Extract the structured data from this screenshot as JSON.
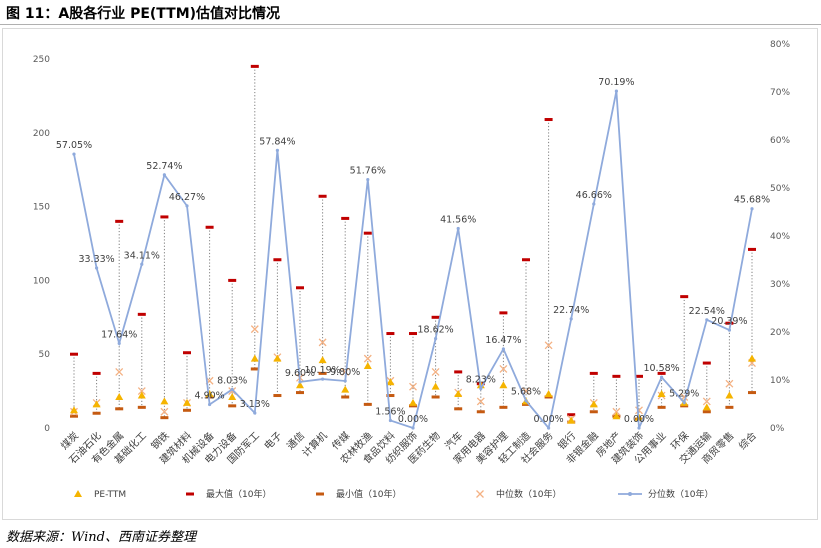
{
  "figure": {
    "title": "图 11：A股各行业 PE(TTM)估值对比情况",
    "source": "数据来源：Wind、西南证券整理"
  },
  "colors": {
    "pe_ttm": "#f5b400",
    "max": "#c00000",
    "min": "#c55a11",
    "median": "#f4b183",
    "percentile": "#8faadc",
    "whisker": "#7f7f7f",
    "axis_text": "#595959"
  },
  "chart_data": {
    "type": "line",
    "title": "",
    "categories": [
      "煤炭",
      "石油石化",
      "有色金属",
      "基础化工",
      "钢铁",
      "建筑材料",
      "机械设备",
      "电力设备",
      "国防军工",
      "电子",
      "通信",
      "计算机",
      "传媒",
      "农林牧渔",
      "食品饮料",
      "纺织服饰",
      "医药生物",
      "汽车",
      "家用电器",
      "美容护理",
      "轻工制造",
      "社会服务",
      "银行",
      "非银金融",
      "房地产",
      "建筑装饰",
      "公用事业",
      "环保",
      "交通运输",
      "商贸零售",
      "综合"
    ],
    "y_left": {
      "min": 0,
      "max": 250,
      "ticks": [
        0,
        50,
        100,
        150,
        200,
        250
      ]
    },
    "y_right": {
      "min": 0,
      "max": 80,
      "unit": "%",
      "ticks": [
        "0%",
        "10%",
        "20%",
        "30%",
        "40%",
        "50%",
        "60%",
        "70%",
        "80%"
      ]
    },
    "series": [
      {
        "name": "PE-TTM",
        "marker": "triangle",
        "axis": "left",
        "values": [
          12,
          16,
          21,
          22,
          18,
          17,
          23,
          21,
          47,
          47,
          29,
          46,
          26,
          42,
          31,
          17,
          28,
          23,
          29,
          29,
          18,
          23,
          5,
          16,
          8,
          7,
          23,
          17,
          14,
          22,
          47
        ]
      },
      {
        "name": "最大值（10年）",
        "marker": "dash",
        "axis": "left",
        "values": [
          50,
          37,
          140,
          77,
          143,
          51,
          136,
          100,
          245,
          114,
          95,
          157,
          142,
          132,
          64,
          64,
          75,
          38,
          30,
          78,
          114,
          209,
          9,
          37,
          35,
          35,
          37,
          89,
          44,
          71,
          121
        ]
      },
      {
        "name": "最小值（10年）",
        "marker": "dash",
        "axis": "left",
        "values": [
          8,
          10,
          13,
          14,
          7,
          12,
          21,
          15,
          40,
          22,
          24,
          37,
          21,
          16,
          22,
          15,
          21,
          13,
          11,
          14,
          16,
          21,
          4,
          11,
          8,
          6,
          14,
          15,
          11,
          14,
          24
        ]
      },
      {
        "name": "中位数（10年）",
        "marker": "cross",
        "axis": "left",
        "values": [
          11,
          17,
          38,
          25,
          11,
          17,
          32,
          25,
          67,
          48,
          34,
          58,
          38,
          47,
          32,
          28,
          38,
          24,
          18,
          40,
          25,
          56,
          6,
          17,
          11,
          12,
          22,
          21,
          18,
          30,
          44
        ]
      },
      {
        "name": "分位数（10年）",
        "marker": "line",
        "axis": "right",
        "values": [
          57.05,
          33.33,
          17.64,
          34.11,
          52.74,
          46.27,
          4.9,
          8.03,
          3.13,
          57.84,
          9.6,
          10.19,
          9.8,
          51.76,
          1.56,
          0.0,
          18.62,
          41.56,
          8.23,
          16.47,
          5.68,
          0.0,
          22.74,
          46.66,
          70.19,
          0.0,
          10.58,
          5.29,
          22.54,
          20.39,
          45.68
        ],
        "labels": [
          "57.05%",
          "33.33%",
          "17.64%",
          "34.11%",
          "52.74%",
          "46.27%",
          "4.90%",
          "8.03%",
          "3.13%",
          "57.84%",
          "9.60%",
          "10.19%",
          "9.80%",
          "51.76%",
          "1.56%",
          "0.00%",
          "18.62%",
          "41.56%",
          "8.23%",
          "16.47%",
          "5.68%",
          "0.00%",
          "22.74%",
          "46.66%",
          "70.19%",
          "0.00%",
          "10.58%",
          "5.29%",
          "22.54%",
          "20.39%",
          "45.68%"
        ]
      }
    ],
    "legend_position": "bottom",
    "grid": false
  }
}
